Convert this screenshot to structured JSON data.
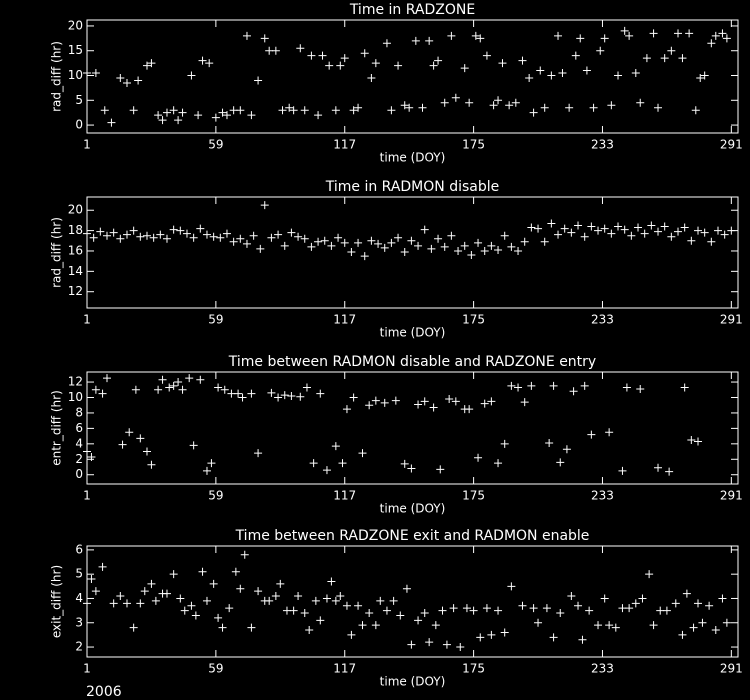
{
  "chart_data": [
    {
      "type": "scatter",
      "title": "Time in RADZONE",
      "xlabel": "time (DOY)",
      "ylabel": "rad_diff (hr)",
      "color": "#ffffff",
      "xlim": [
        1,
        294
      ],
      "ylim": [
        -1.6,
        21.2
      ],
      "xticks": [
        1,
        59,
        117,
        175,
        233,
        291
      ],
      "yticks": [
        0,
        5,
        10,
        15,
        20
      ],
      "x": [
        1,
        5,
        9,
        12,
        16,
        19,
        22,
        24,
        28,
        30,
        33,
        35,
        37,
        40,
        42,
        44,
        48,
        51,
        53,
        56,
        59,
        62,
        64,
        67,
        70,
        73,
        75,
        78,
        81,
        83,
        86,
        89,
        92,
        94,
        97,
        99,
        102,
        105,
        107,
        110,
        113,
        115,
        117,
        121,
        123,
        126,
        129,
        131,
        136,
        138,
        141,
        144,
        146,
        149,
        152,
        155,
        157,
        159,
        162,
        165,
        167,
        171,
        173,
        176,
        178,
        181,
        184,
        186,
        188,
        191,
        194,
        197,
        200,
        202,
        205,
        207,
        210,
        213,
        215,
        218,
        221,
        223,
        226,
        229,
        232,
        234,
        237,
        240,
        243,
        245,
        248,
        250,
        253,
        256,
        258,
        261,
        264,
        267,
        269,
        272,
        275,
        277,
        279,
        282,
        284,
        287,
        289
      ],
      "values": [
        10.5,
        10.5,
        3,
        0.5,
        9.5,
        8.5,
        3,
        9,
        12,
        12.5,
        2,
        1,
        2.5,
        3,
        1,
        2.5,
        10,
        2,
        13,
        12.5,
        1.5,
        2.5,
        2,
        3,
        3,
        18,
        2,
        9,
        17.5,
        15,
        15,
        3,
        3.5,
        3,
        15.5,
        3,
        14,
        2,
        14,
        12,
        3,
        12,
        13.5,
        3,
        3.5,
        14.5,
        9.5,
        12.5,
        16.5,
        3,
        12,
        4,
        3.5,
        17,
        3.5,
        17,
        12,
        13,
        4.5,
        18,
        5.5,
        11.5,
        4.5,
        18,
        17.5,
        14,
        4,
        5,
        12.5,
        4,
        4.5,
        13,
        9.5,
        2.5,
        11,
        3.5,
        10,
        18,
        10.5,
        3.5,
        14,
        17.5,
        11,
        3.5,
        15,
        17.5,
        4,
        10,
        19,
        18,
        10.5,
        4.5,
        13.5,
        18.5,
        3.5,
        13.5,
        15,
        18.5,
        13.5,
        18.5,
        3,
        9.5,
        10,
        16.5,
        18,
        18.5,
        17.5
      ]
    },
    {
      "type": "scatter",
      "title": "Time in RADMON disable",
      "xlabel": "time (DOY)",
      "ylabel": "rad_diff (hr)",
      "color": "#ffffff",
      "xlim": [
        1,
        294
      ],
      "ylim": [
        10.4,
        21.3
      ],
      "xticks": [
        1,
        59,
        117,
        175,
        233,
        291
      ],
      "yticks": [
        12,
        14,
        16,
        18,
        20
      ],
      "x": [
        1,
        4,
        7,
        10,
        13,
        16,
        19,
        22,
        25,
        28,
        31,
        34,
        37,
        40,
        43,
        46,
        49,
        52,
        55,
        58,
        61,
        64,
        67,
        70,
        73,
        76,
        79,
        81,
        84,
        87,
        90,
        93,
        96,
        99,
        102,
        105,
        108,
        111,
        114,
        117,
        120,
        123,
        126,
        129,
        132,
        135,
        138,
        141,
        144,
        147,
        150,
        153,
        156,
        159,
        162,
        165,
        168,
        171,
        174,
        177,
        180,
        183,
        186,
        189,
        192,
        195,
        198,
        201,
        204,
        207,
        210,
        213,
        216,
        219,
        222,
        225,
        228,
        231,
        234,
        237,
        240,
        243,
        246,
        249,
        252,
        255,
        258,
        261,
        264,
        267,
        270,
        273,
        276,
        279,
        282,
        285,
        288,
        291
      ],
      "values": [
        17.7,
        17.3,
        17.9,
        17.5,
        17.8,
        17.2,
        17.6,
        18,
        17.4,
        17.5,
        17.3,
        17.6,
        17.2,
        18.1,
        18.0,
        17.7,
        17.3,
        18.2,
        17.6,
        17.4,
        17.3,
        17.7,
        16.9,
        17.2,
        16.7,
        17.5,
        16.2,
        20.5,
        17.3,
        17.6,
        16.5,
        17.8,
        17.4,
        17.2,
        16.4,
        16.9,
        17.0,
        16.5,
        17.3,
        16.8,
        15.9,
        16.8,
        15.5,
        17.0,
        16.7,
        16.3,
        16.8,
        17.3,
        15.9,
        17.0,
        16.5,
        18.1,
        16.2,
        17.2,
        16.4,
        17.5,
        16.0,
        16.5,
        15.6,
        16.8,
        16.0,
        16.5,
        16.1,
        17.5,
        16.4,
        16.0,
        16.9,
        18.3,
        18.2,
        16.9,
        18.7,
        17.6,
        18.2,
        17.8,
        18.5,
        17.4,
        18.4,
        18.0,
        18.2,
        17.7,
        18.4,
        18.1,
        17.5,
        18.3,
        17.7,
        18.5,
        17.9,
        18.4,
        17.4,
        17.9,
        18.3,
        17.0,
        18.0,
        17.8,
        16.9,
        18.0,
        17.6,
        18.0
      ]
    },
    {
      "type": "scatter",
      "title": "Time between RADMON disable and RADZONE entry",
      "xlabel": "time (DOY)",
      "ylabel": "entr_diff (hr)",
      "color": "#ffffff",
      "xlim": [
        1,
        294
      ],
      "ylim": [
        -1.2,
        13.3
      ],
      "xticks": [
        1,
        59,
        117,
        175,
        233,
        291
      ],
      "yticks": [
        0,
        2,
        4,
        6,
        8,
        10,
        12
      ],
      "x": [
        1,
        3,
        5,
        8,
        10,
        17,
        20,
        23,
        25,
        28,
        30,
        33,
        35,
        38,
        40,
        42,
        44,
        47,
        49,
        52,
        55,
        57,
        60,
        63,
        66,
        69,
        71,
        75,
        78,
        84,
        87,
        90,
        93,
        97,
        100,
        103,
        106,
        109,
        113,
        116,
        118,
        121,
        125,
        128,
        131,
        135,
        140,
        144,
        147,
        150,
        153,
        157,
        160,
        164,
        167,
        171,
        173,
        177,
        180,
        183,
        186,
        189,
        192,
        195,
        198,
        201,
        209,
        211,
        214,
        217,
        220,
        225,
        228,
        236,
        242,
        244,
        250,
        258,
        263,
        270,
        273,
        276
      ],
      "values": [
        3,
        2.3,
        11,
        10.5,
        12.5,
        3.9,
        5.5,
        11,
        4.7,
        3,
        1.3,
        11,
        12.3,
        11.3,
        11.5,
        12,
        11,
        12.5,
        3.8,
        12.3,
        0.5,
        1.5,
        11.3,
        11,
        10.5,
        10.5,
        10,
        10.5,
        2.8,
        10.6,
        10,
        10.3,
        10.2,
        10.1,
        11.3,
        1.5,
        10.5,
        0.6,
        3.7,
        1.5,
        8.5,
        10,
        2.8,
        9,
        9.6,
        9.3,
        9.6,
        1.4,
        0.8,
        9.1,
        9.5,
        8.7,
        0.7,
        9.8,
        9.5,
        8.5,
        8.5,
        2.2,
        9.2,
        9.5,
        1.5,
        4,
        11.5,
        11.3,
        9.4,
        11.5,
        4.1,
        11.5,
        1.6,
        3.3,
        10.8,
        11.5,
        5.2,
        5.5,
        0.5,
        11.3,
        11.1,
        0.9,
        0.4,
        11.3,
        4.5,
        4.3
      ]
    },
    {
      "type": "scatter",
      "title": "Time between RADZONE exit and RADMON enable",
      "xlabel": "time (DOY)",
      "ylabel": "exit_diff (hr)",
      "color": "#ffffff",
      "xlim": [
        1,
        294
      ],
      "ylim": [
        1.59,
        6.16
      ],
      "xticks": [
        1,
        59,
        117,
        175,
        233,
        291
      ],
      "yticks": [
        2,
        3,
        4,
        5,
        6
      ],
      "x": [
        1,
        3,
        5,
        8,
        13,
        16,
        19,
        22,
        25,
        27,
        30,
        32,
        35,
        37,
        40,
        43,
        45,
        48,
        50,
        53,
        55,
        58,
        60,
        62,
        65,
        68,
        70,
        72,
        75,
        78,
        81,
        83,
        86,
        88,
        91,
        94,
        96,
        99,
        101,
        104,
        106,
        109,
        111,
        113,
        115,
        118,
        120,
        123,
        125,
        128,
        131,
        133,
        136,
        139,
        142,
        145,
        147,
        150,
        153,
        155,
        158,
        161,
        163,
        166,
        169,
        172,
        175,
        178,
        181,
        183,
        186,
        189,
        192,
        197,
        202,
        204,
        208,
        211,
        214,
        219,
        222,
        224,
        227,
        231,
        234,
        236,
        239,
        242,
        245,
        248,
        251,
        254,
        256,
        259,
        262,
        266,
        269,
        271,
        274,
        276,
        278,
        281,
        284,
        287,
        289
      ],
      "values": [
        3.8,
        4.8,
        4.3,
        5.3,
        3.8,
        4.1,
        3.8,
        2.8,
        3.8,
        4.3,
        4.6,
        3.9,
        4.2,
        4.2,
        5,
        4,
        3.5,
        3.7,
        3.3,
        5.1,
        3.9,
        4.6,
        3.2,
        2.8,
        3.6,
        5.1,
        4.4,
        5.8,
        2.8,
        4.3,
        3.9,
        3.9,
        4.1,
        4.6,
        3.5,
        3.5,
        4.1,
        3.4,
        2.7,
        3.9,
        3.1,
        4.0,
        4.7,
        3.9,
        4.1,
        3.7,
        2.5,
        3.7,
        2.9,
        3.4,
        2.9,
        3.9,
        3.5,
        3.9,
        3.3,
        4.4,
        2.1,
        3.1,
        3.4,
        2.2,
        2.9,
        3.5,
        2.1,
        3.6,
        2.0,
        3.6,
        3.5,
        2.4,
        3.6,
        2.5,
        3.5,
        2.6,
        4.5,
        3.7,
        3.6,
        3.0,
        3.6,
        2.4,
        3.4,
        4.1,
        3.7,
        2.3,
        3.5,
        2.9,
        4.0,
        2.9,
        2.8,
        3.6,
        3.6,
        3.8,
        4.0,
        5.0,
        2.9,
        3.5,
        3.5,
        3.8,
        2.5,
        4.2,
        2.8,
        3.8,
        3.0,
        3.7,
        2.7,
        4.0,
        3.0
      ]
    }
  ],
  "footer": "2006"
}
